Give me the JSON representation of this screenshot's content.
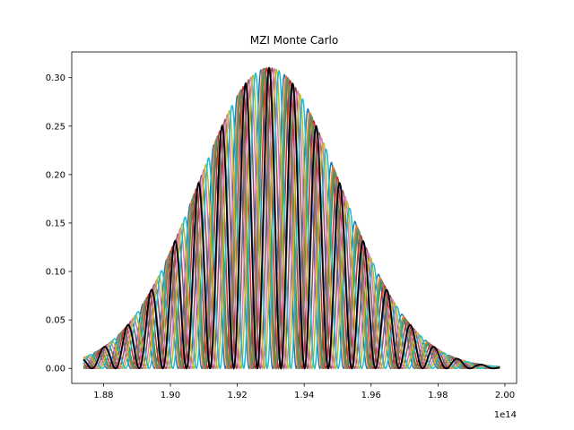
{
  "chart_data": {
    "type": "line",
    "title": "MZI Monte Carlo",
    "xlabel": "",
    "ylabel": "",
    "x_offset_label": "1e14",
    "xlim": [
      1.8705,
      2.0035
    ],
    "ylim": [
      -0.0155,
      0.3265
    ],
    "x_range": [
      1.874,
      1.9985
    ],
    "x_ticks": [
      1.88,
      1.9,
      1.92,
      1.94,
      1.96,
      1.98,
      2.0
    ],
    "x_tick_labels": [
      "1.88",
      "1.90",
      "1.92",
      "1.94",
      "1.96",
      "1.98",
      "2.00"
    ],
    "y_ticks": [
      0.0,
      0.05,
      0.1,
      0.15,
      0.2,
      0.25,
      0.3
    ],
    "y_tick_labels": [
      "0.00",
      "0.05",
      "0.10",
      "0.15",
      "0.20",
      "0.25",
      "0.30"
    ],
    "grid": false,
    "legend": "none",
    "envelope": {
      "center": 1.9295,
      "sigma": 0.0215,
      "peak": 0.31
    },
    "nominal": {
      "color": "#000000",
      "peak_x": [
        1.8795,
        1.8867,
        1.8935,
        1.9005,
        1.9075,
        1.9145,
        1.9215,
        1.9295,
        1.9355,
        1.9425,
        1.9495,
        1.9565,
        1.9645,
        1.9715,
        1.9785,
        1.9855,
        1.9925
      ]
    },
    "series": [
      {
        "color": "#1f77b4",
        "shift": -0.00245
      },
      {
        "color": "#ff7f0e",
        "shift": -0.0019
      },
      {
        "color": "#2ca02c",
        "shift": -0.0013
      },
      {
        "color": "#d62728",
        "shift": -0.0007
      },
      {
        "color": "#9467bd",
        "shift": 0.0002
      },
      {
        "color": "#8c564b",
        "shift": 0.0009
      },
      {
        "color": "#e377c2",
        "shift": 0.0016
      },
      {
        "color": "#7f7f7f",
        "shift": -0.0016
      },
      {
        "color": "#bcbd22",
        "shift": 0.0022
      },
      {
        "color": "#17becf",
        "shift": 0.003
      }
    ]
  }
}
